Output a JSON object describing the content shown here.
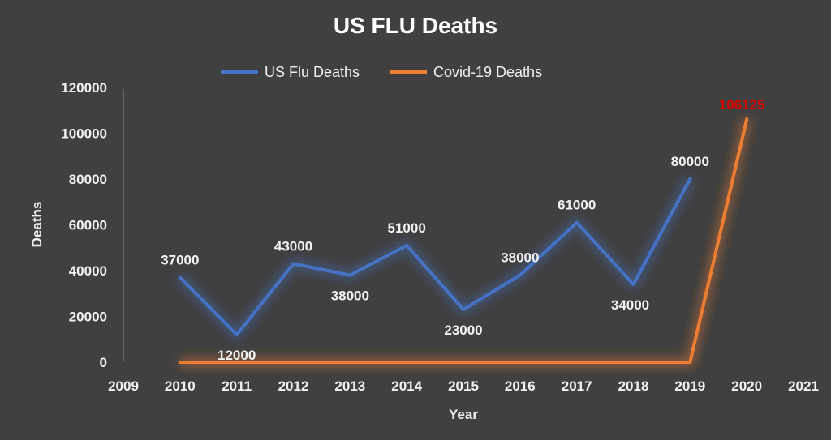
{
  "chart_data": {
    "type": "line",
    "title": "US FLU Deaths",
    "xlabel": "Year",
    "ylabel": "Deaths",
    "xlim": [
      2009,
      2021
    ],
    "ylim": [
      0,
      120000
    ],
    "x_ticks": [
      "2009",
      "2010",
      "2011",
      "2012",
      "2013",
      "2014",
      "2015",
      "2016",
      "2017",
      "2018",
      "2019",
      "2020",
      "2021"
    ],
    "y_ticks": [
      "0",
      "20000",
      "40000",
      "60000",
      "80000",
      "100000",
      "120000"
    ],
    "legend_position": "top",
    "grid": false,
    "series": [
      {
        "name": "US Flu Deaths",
        "color": "#4472c4",
        "x": [
          2010,
          2011,
          2012,
          2013,
          2014,
          2015,
          2016,
          2017,
          2018,
          2019
        ],
        "y": [
          37000,
          12000,
          43000,
          38000,
          51000,
          23000,
          38000,
          61000,
          34000,
          80000
        ],
        "labels": [
          "37000",
          "12000",
          "43000",
          "38000",
          "51000",
          "23000",
          "38000",
          "61000",
          "34000",
          "80000"
        ]
      },
      {
        "name": "Covid-19 Deaths",
        "color": "#ed7d31",
        "x": [
          2010,
          2011,
          2012,
          2013,
          2014,
          2015,
          2016,
          2017,
          2018,
          2019,
          2020
        ],
        "y": [
          0,
          0,
          0,
          0,
          0,
          0,
          0,
          0,
          0,
          0,
          106125
        ],
        "labels": [
          "106125"
        ],
        "label_color": "#e00000"
      }
    ]
  }
}
